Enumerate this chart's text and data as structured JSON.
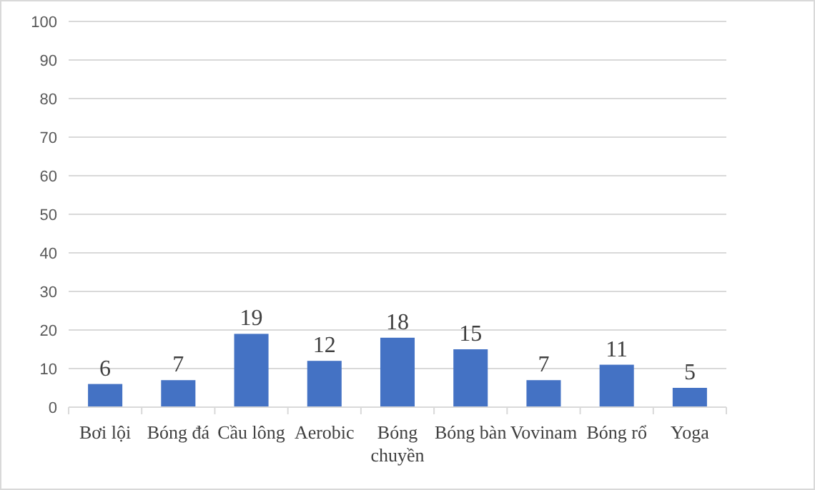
{
  "chart_data": {
    "type": "bar",
    "categories": [
      "Bơi lội",
      "Bóng đá",
      "Cầu lông",
      "Aerobic",
      "Bóng chuyền",
      "Bóng bàn",
      "Vovinam",
      "Bóng rổ",
      "Yoga"
    ],
    "values": [
      6,
      7,
      19,
      12,
      18,
      15,
      7,
      11,
      5
    ],
    "color": "#4472c4",
    "ylim": [
      0,
      100
    ],
    "yticks": [
      0,
      10,
      20,
      30,
      40,
      50,
      60,
      70,
      80,
      90,
      100
    ],
    "grid": "y",
    "data_labels": true
  }
}
